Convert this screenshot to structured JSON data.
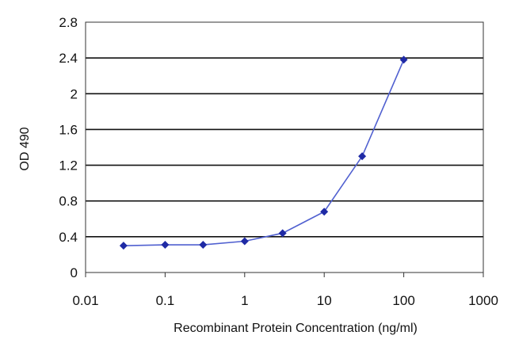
{
  "chart_data": {
    "type": "line",
    "title": "",
    "xlabel": "Recombinant Protein Concentration (ng/ml)",
    "ylabel": "OD 490",
    "x_scale": "log",
    "xlim": [
      0.01,
      1000
    ],
    "ylim": [
      0,
      2.8
    ],
    "x_ticks": [
      0.01,
      0.1,
      1,
      10,
      100,
      1000
    ],
    "x_tick_labels": [
      "0.01",
      "0.1",
      "1",
      "10",
      "100",
      "1000"
    ],
    "y_ticks": [
      0,
      0.4,
      0.8,
      1.2,
      1.6,
      2,
      2.4,
      2.8
    ],
    "y_tick_labels": [
      "0",
      "0.4",
      "0.8",
      "1.2",
      "1.6",
      "2",
      "2.4",
      "2.8"
    ],
    "grid": "horizontal",
    "series": [
      {
        "x": [
          0.03,
          0.1,
          0.3,
          1,
          3,
          10,
          30,
          100
        ],
        "y": [
          0.3,
          0.31,
          0.31,
          0.35,
          0.44,
          0.68,
          1.3,
          2.38
        ],
        "color": "#1f2aa5"
      }
    ],
    "colors": {
      "plot_background": "#ffffff",
      "gridline": "#111111",
      "line": "#5060d0",
      "marker": "#1f2aa5"
    }
  }
}
